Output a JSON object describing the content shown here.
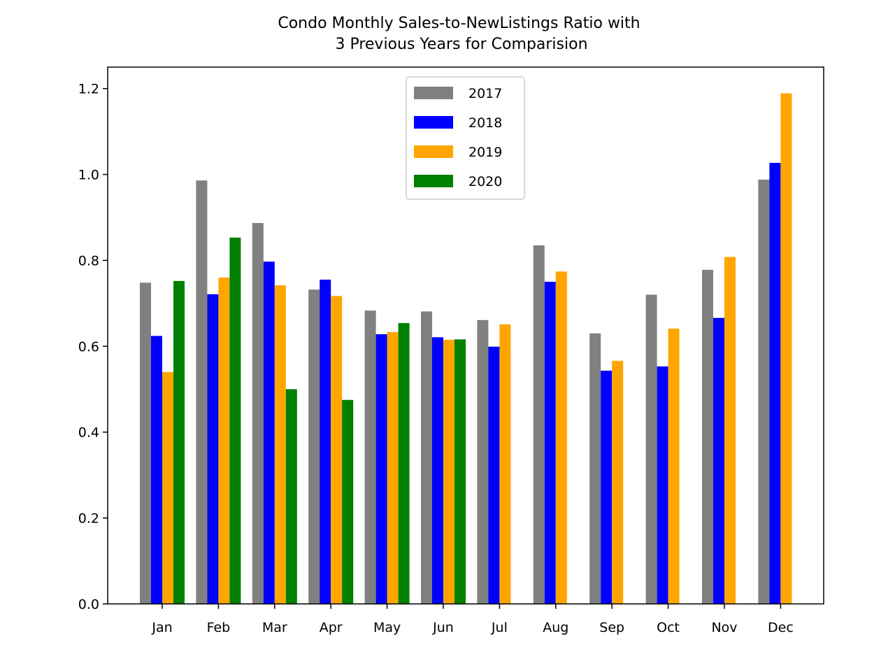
{
  "chart_data": {
    "type": "bar",
    "title": "Condo Monthly Sales-to-NewListings Ratio with\n3 Previous Years for Comparision",
    "xlabel": "",
    "ylabel": "",
    "categories": [
      "Jan",
      "Feb",
      "Mar",
      "Apr",
      "May",
      "Jun",
      "Jul",
      "Aug",
      "Sep",
      "Oct",
      "Nov",
      "Dec"
    ],
    "ylim": [
      0,
      1.25
    ],
    "yticks": [
      0.0,
      0.2,
      0.4,
      0.6,
      0.8,
      1.0,
      1.2
    ],
    "ytick_labels": [
      "0.0",
      "0.2",
      "0.4",
      "0.6",
      "0.8",
      "1.0",
      "1.2"
    ],
    "grid": false,
    "legend_position": "top-center",
    "series": [
      {
        "name": "2017",
        "color": "#808080",
        "values": [
          0.748,
          0.986,
          0.887,
          0.732,
          0.683,
          0.681,
          0.661,
          0.835,
          0.63,
          0.72,
          0.778,
          0.988
        ]
      },
      {
        "name": "2018",
        "color": "#0000ff",
        "values": [
          0.624,
          0.721,
          0.797,
          0.755,
          0.628,
          0.621,
          0.599,
          0.75,
          0.543,
          0.553,
          0.666,
          1.027
        ]
      },
      {
        "name": "2019",
        "color": "#ffa500",
        "values": [
          0.54,
          0.76,
          0.742,
          0.717,
          0.633,
          0.615,
          0.651,
          0.774,
          0.566,
          0.641,
          0.808,
          1.189
        ]
      },
      {
        "name": "2020",
        "color": "#008000",
        "values": [
          0.752,
          0.853,
          0.5,
          0.475,
          0.654,
          0.616,
          null,
          null,
          null,
          null,
          null,
          null
        ]
      }
    ]
  }
}
